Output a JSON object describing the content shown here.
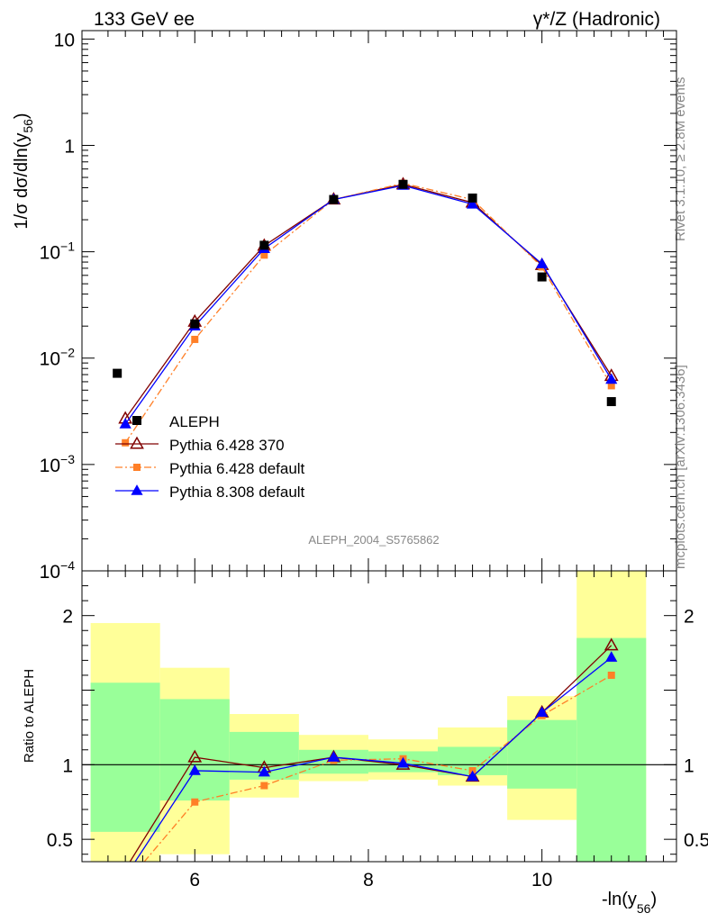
{
  "header": {
    "left": "133 GeV ee",
    "right": "γ*/Z (Hadronic)"
  },
  "sidebar": {
    "rivet": "Rivet 3.1.10, ≥ 2.8M events",
    "mcplots": "mcplots.cern.ch [arXiv:1306.3436]"
  },
  "watermark": "ALEPH_2004_S5765862",
  "chart_data": {
    "type": "scatter",
    "ylabel": "1/σ  dσ/dln(y56)",
    "xlabel": "-ln(y56)",
    "ratio_ylabel": "Ratio to ALEPH",
    "yscale": "log",
    "ylim": [
      0.0001,
      12
    ],
    "xlim": [
      4.7,
      11.55
    ],
    "xticks": [
      6,
      8,
      10
    ],
    "yticks": [
      {
        "value": 10,
        "label": "10"
      },
      {
        "value": 1,
        "label": "1"
      },
      {
        "value": 0.1,
        "label": "10-1"
      },
      {
        "value": 0.01,
        "label": "10-2"
      },
      {
        "value": 0.001,
        "label": "10-3"
      },
      {
        "value": 0.0001,
        "label": "10-4"
      }
    ],
    "ratio_ylim": [
      0.35,
      2.3
    ],
    "ratio_yticks": [
      0.5,
      1,
      2
    ],
    "data": {
      "name": "ALEPH",
      "x": [
        5.2,
        6.0,
        6.8,
        7.6,
        8.4,
        9.2,
        10.0,
        10.8
      ],
      "y": [
        0.0072,
        0.021,
        0.115,
        0.31,
        0.43,
        0.32,
        0.058,
        0.0039
      ],
      "bands": [
        {
          "x": [
            4.8,
            5.6
          ],
          "inner": [
            0.55,
            1.55
          ],
          "outer": [
            0.25,
            1.95
          ]
        },
        {
          "x": [
            5.6,
            6.4
          ],
          "inner": [
            0.76,
            1.44
          ],
          "outer": [
            0.4,
            1.65
          ]
        },
        {
          "x": [
            6.4,
            7.2
          ],
          "inner": [
            0.9,
            1.22
          ],
          "outer": [
            0.78,
            1.34
          ]
        },
        {
          "x": [
            7.2,
            8.0
          ],
          "inner": [
            0.94,
            1.1
          ],
          "outer": [
            0.89,
            1.2
          ]
        },
        {
          "x": [
            8.0,
            8.8
          ],
          "inner": [
            0.95,
            1.09
          ],
          "outer": [
            0.9,
            1.17
          ]
        },
        {
          "x": [
            8.8,
            9.6
          ],
          "inner": [
            0.93,
            1.12
          ],
          "outer": [
            0.86,
            1.25
          ]
        },
        {
          "x": [
            9.6,
            10.4
          ],
          "inner": [
            0.84,
            1.3
          ],
          "outer": [
            0.63,
            1.46
          ]
        },
        {
          "x": [
            10.4,
            11.2
          ],
          "inner": [
            0.3,
            1.85
          ],
          "outer": [
            0.3,
            2.3
          ]
        }
      ]
    },
    "series": [
      {
        "name": "Pythia 6.428 370",
        "color": "#800000",
        "marker": "open-triangle",
        "y": [
          0.0027,
          0.022,
          0.114,
          0.31,
          0.43,
          0.29,
          0.075,
          0.0068
        ],
        "ratio": [
          0.3,
          1.05,
          0.98,
          1.05,
          1.0,
          0.92,
          1.35,
          1.8
        ]
      },
      {
        "name": "Pythia 6.428 default",
        "color": "#ff7f27",
        "marker": "square",
        "dashed": true,
        "y": [
          0.0016,
          0.015,
          0.093,
          0.31,
          0.44,
          0.31,
          0.072,
          0.0055
        ],
        "ratio": [
          0.2,
          0.75,
          0.86,
          1.03,
          1.04,
          0.96,
          1.33,
          1.6
        ]
      },
      {
        "name": "Pythia 8.308 default",
        "color": "#0000ff",
        "marker": "filled-triangle",
        "y": [
          0.0024,
          0.02,
          0.107,
          0.31,
          0.42,
          0.28,
          0.077,
          0.0063
        ],
        "ratio": [
          0.25,
          0.96,
          0.95,
          1.05,
          1.01,
          0.92,
          1.35,
          1.72
        ]
      }
    ]
  }
}
